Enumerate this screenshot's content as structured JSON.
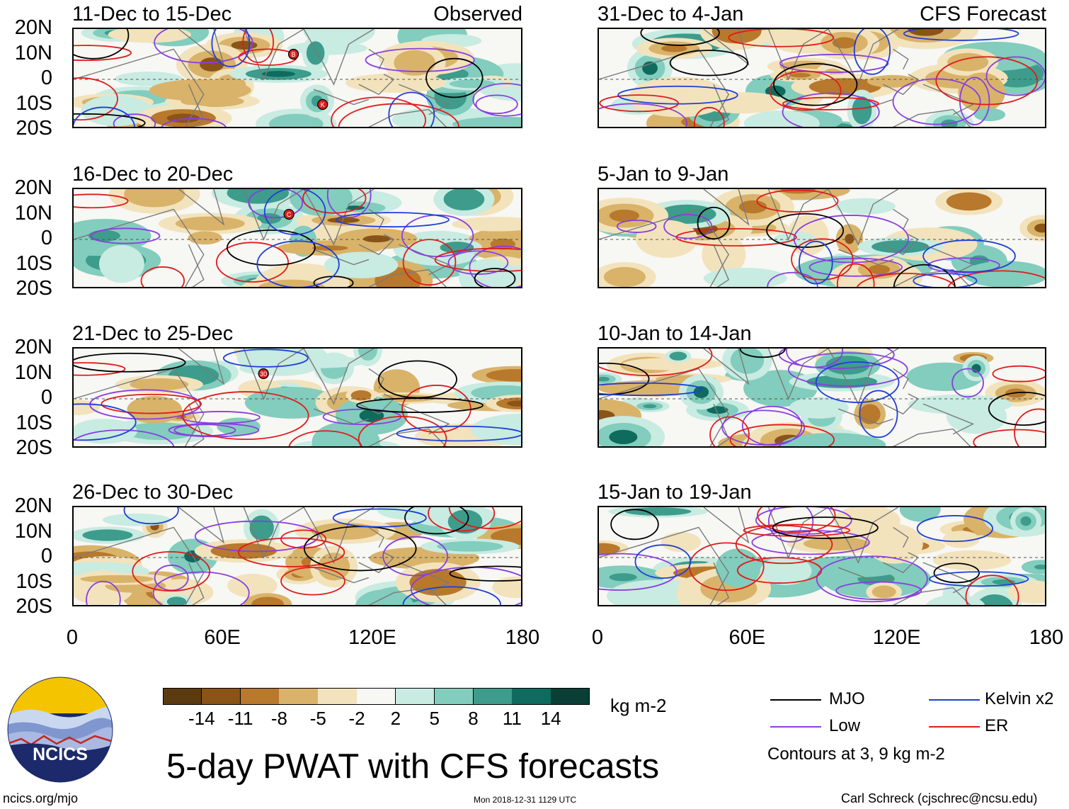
{
  "colors": {
    "mjo": "#000000",
    "kelvin": "#1f3fd6",
    "low": "#8a3ee0",
    "er": "#e11b1b",
    "land": "#7a7a7a",
    "ncics_blue": "#1c2a6b",
    "ncics_yellow": "#f5c400"
  },
  "observed": {
    "tag": "Observed",
    "panels": [
      {
        "title": "11-Dec to 15-Dec",
        "storms": [
          {
            "label": "B"
          },
          {
            "label": "K"
          }
        ]
      },
      {
        "title": "16-Dec to 20-Dec",
        "storms": [
          {
            "label": "C"
          }
        ]
      },
      {
        "title": "21-Dec to 25-Dec",
        "storms": [
          {
            "label": "30"
          }
        ]
      },
      {
        "title": "26-Dec to 30-Dec",
        "storms": []
      }
    ]
  },
  "forecast": {
    "tag": "CFS Forecast",
    "panels": [
      {
        "title": "31-Dec to 4-Jan"
      },
      {
        "title": "5-Jan to 9-Jan"
      },
      {
        "title": "10-Jan to 14-Jan"
      },
      {
        "title": "15-Jan to 19-Jan"
      }
    ]
  },
  "lat_labels": [
    "20N",
    "10N",
    "0",
    "10S",
    "20S"
  ],
  "lon_labels": [
    "0",
    "60E",
    "120E",
    "180"
  ],
  "colorbar": {
    "colors": [
      "#5c3a10",
      "#8a5417",
      "#b8792c",
      "#d9b36a",
      "#f2e3bd",
      "#f7f7f4",
      "#c8ebe2",
      "#82cdbd",
      "#3d9c8c",
      "#0e6b5e",
      "#0a3f36"
    ],
    "labels": [
      "-14",
      "-11",
      "-8",
      "-5",
      "-2",
      "2",
      "5",
      "8",
      "11",
      "14"
    ],
    "units": "kg m-2"
  },
  "title": "5-day PWAT with CFS forecasts",
  "legend": {
    "items": [
      {
        "label": "MJO"
      },
      {
        "label": "Kelvin x2"
      },
      {
        "label": "Low"
      },
      {
        "label": "ER"
      }
    ],
    "contours_note": "Contours at 3, 9 kg m-2"
  },
  "logo_text": "NCICS",
  "footer": {
    "url": "ncics.org/mjo",
    "timestamp": "Mon 2018-12-31 1129 UTC",
    "author": "Carl Schreck (cjschrec@ncsu.edu)"
  }
}
